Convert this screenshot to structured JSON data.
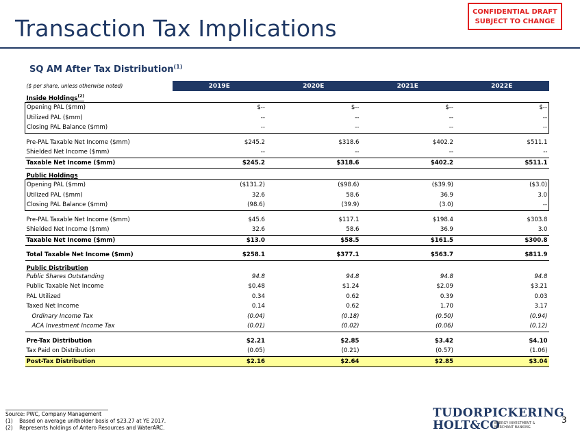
{
  "title": "Transaction Tax Implications",
  "confidential": {
    "line1": "CONFIDENTIAL DRAFT",
    "line2": "SUBJECT TO CHANGE"
  },
  "subtitle": {
    "text": "SQ AM After Tax Distribution",
    "sup": "(1)"
  },
  "header": {
    "note": "($ per share, unless otherwise noted)",
    "years": [
      "2019E",
      "2020E",
      "2021E",
      "2022E"
    ]
  },
  "inside": {
    "title": "Inside Holdings",
    "sup": "(2)",
    "rows": [
      {
        "label": "Opening PAL ($mm)",
        "values": [
          "$--",
          "$--",
          "$--",
          "$--"
        ]
      },
      {
        "label": "Utilized PAL ($mm)",
        "values": [
          "--",
          "--",
          "--",
          "--"
        ]
      },
      {
        "label": "Closing PAL Balance ($mm)",
        "values": [
          "--",
          "--",
          "--",
          "--"
        ]
      },
      {
        "label": "Pre-PAL Taxable Net Income ($mm)",
        "values": [
          "$245.2",
          "$318.6",
          "$402.2",
          "$511.1"
        ]
      },
      {
        "label": "Shielded Net Income ($mm)",
        "values": [
          "--",
          "--",
          "--",
          "--"
        ]
      },
      {
        "label": "Taxable Net Income ($mm)",
        "values": [
          "$245.2",
          "$318.6",
          "$402.2",
          "$511.1"
        ]
      }
    ]
  },
  "public": {
    "title": "Public Holdings",
    "rows": [
      {
        "label": "Opening PAL ($mm)",
        "values": [
          "($131.2)",
          "($98.6)",
          "($39.9)",
          "($3.0)"
        ]
      },
      {
        "label": "Utilized PAL ($mm)",
        "values": [
          "32.6",
          "58.6",
          "36.9",
          "3.0"
        ]
      },
      {
        "label": "Closing PAL Balance ($mm)",
        "values": [
          "(98.6)",
          "(39.9)",
          "(3.0)",
          "--"
        ]
      },
      {
        "label": "Pre-PAL Taxable Net Income ($mm)",
        "values": [
          "$45.6",
          "$117.1",
          "$198.4",
          "$303.8"
        ]
      },
      {
        "label": "Shielded Net Income ($mm)",
        "values": [
          "32.6",
          "58.6",
          "36.9",
          "3.0"
        ]
      },
      {
        "label": "Taxable Net Income ($mm)",
        "values": [
          "$13.0",
          "$58.5",
          "$161.5",
          "$300.8"
        ]
      }
    ]
  },
  "total": {
    "label": "Total Taxable Net Income ($mm)",
    "values": [
      "$258.1",
      "$377.1",
      "$563.7",
      "$811.9"
    ]
  },
  "distribution": {
    "title": "Public Distribution",
    "rows": [
      {
        "label": "Public Shares Outstanding",
        "values": [
          "94.8",
          "94.8",
          "94.8",
          "94.8"
        ]
      },
      {
        "label": "Public Taxable Net Income",
        "values": [
          "$0.48",
          "$1.24",
          "$2.09",
          "$3.21"
        ]
      },
      {
        "label": "PAL Utilized",
        "values": [
          "0.34",
          "0.62",
          "0.39",
          "0.03"
        ]
      },
      {
        "label": "Taxed Net Income",
        "values": [
          "0.14",
          "0.62",
          "1.70",
          "3.17"
        ]
      },
      {
        "label": "Ordinary Income Tax",
        "values": [
          "(0.04)",
          "(0.18)",
          "(0.50)",
          "(0.94)"
        ]
      },
      {
        "label": "ACA Investment Income Tax",
        "values": [
          "(0.01)",
          "(0.02)",
          "(0.06)",
          "(0.12)"
        ]
      },
      {
        "label": "Pre-Tax Distribution",
        "values": [
          "$2.21",
          "$2.85",
          "$3.42",
          "$4.10"
        ]
      },
      {
        "label": "Tax Paid on Distribution",
        "values": [
          "(0.05)",
          "(0.21)",
          "(0.57)",
          "(1.06)"
        ]
      },
      {
        "label": "Post-Tax Distribution",
        "values": [
          "$2.16",
          "$2.64",
          "$2.85",
          "$3.04"
        ]
      }
    ]
  },
  "footer": {
    "source": "Source: PWC, Company Management",
    "note1": "(1)    Based on average unitholder basis of $23.27 at YE 2017.",
    "note2": "(2)    Represents holdings of Antero Resources and WaterARC."
  },
  "logo": {
    "line1": "TUDORPICKERING",
    "line2": "HOLT&CO",
    "tag1": "ENERGY INVESTMENT &",
    "tag2": "MERCHANT BANKING"
  },
  "page_number": "3"
}
